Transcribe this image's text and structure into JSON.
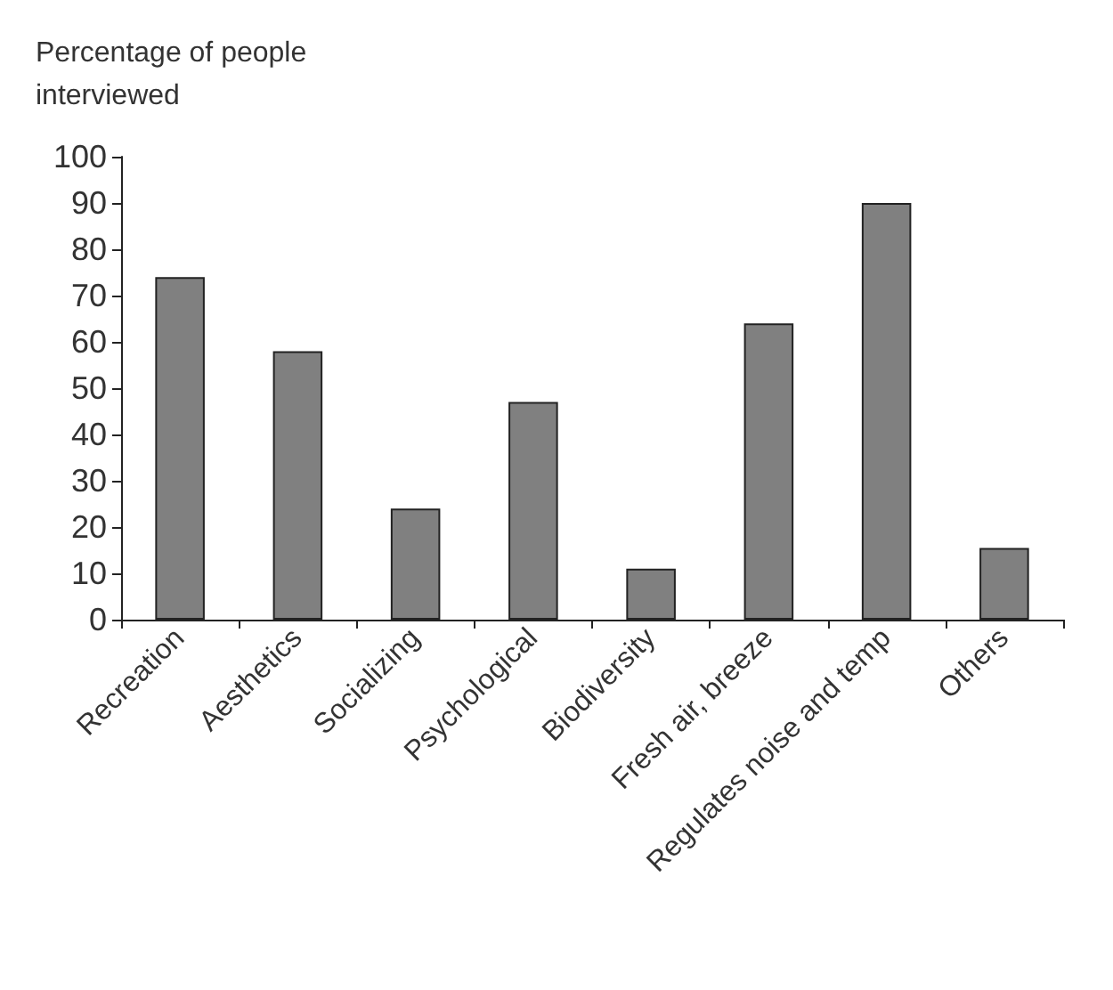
{
  "chart_data": {
    "type": "bar",
    "ylabel": "Percentage of people\ninterviewed",
    "categories": [
      "Recreation",
      "Aesthetics",
      "Socializing",
      "Psychological",
      "Biodiversity",
      "Fresh air, breeze",
      "Regulates noise and temp",
      "Others"
    ],
    "values": [
      74,
      58,
      24,
      47,
      11,
      64,
      90,
      15.5
    ],
    "color": "#808080",
    "ylim": [
      0,
      100
    ],
    "yticks": [
      0,
      10,
      20,
      30,
      40,
      50,
      60,
      70,
      80,
      90,
      100
    ],
    "grid": false
  }
}
